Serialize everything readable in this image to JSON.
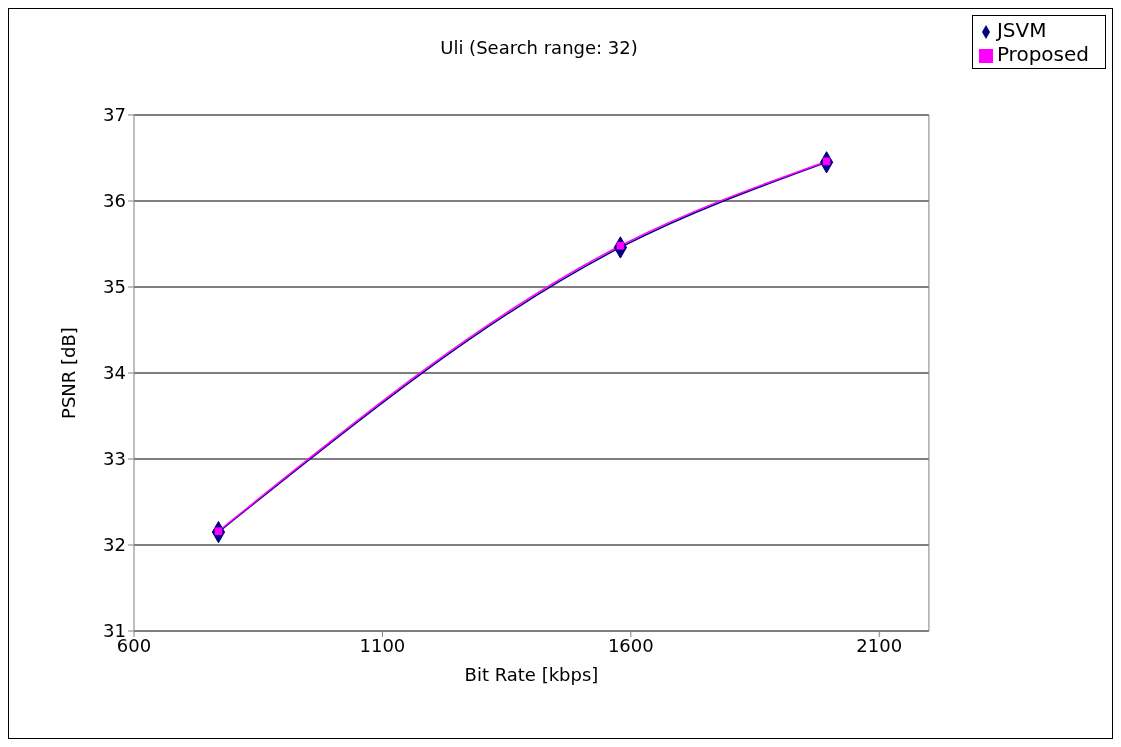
{
  "chart_data": {
    "type": "line",
    "title": "Uli (Search range: 32)",
    "xlabel": "Bit Rate [kbps]",
    "ylabel": "PSNR [dB]",
    "x": [
      770,
      1579,
      1994
    ],
    "series": [
      {
        "name": "JSVM",
        "color": "#000080",
        "marker": "diamond",
        "values": [
          32.15,
          35.46,
          36.45
        ]
      },
      {
        "name": "Proposed",
        "color": "#ff00ff",
        "marker": "square",
        "values": [
          32.16,
          35.48,
          36.46
        ]
      }
    ],
    "xlim": [
      600,
      2200
    ],
    "xticks": [
      600,
      1100,
      1600,
      2100
    ],
    "ylim": [
      31,
      37
    ],
    "yticks": [
      31,
      32,
      33,
      34,
      35,
      36,
      37
    ],
    "grid": "y",
    "legend": "top right",
    "line_style": "solid"
  }
}
